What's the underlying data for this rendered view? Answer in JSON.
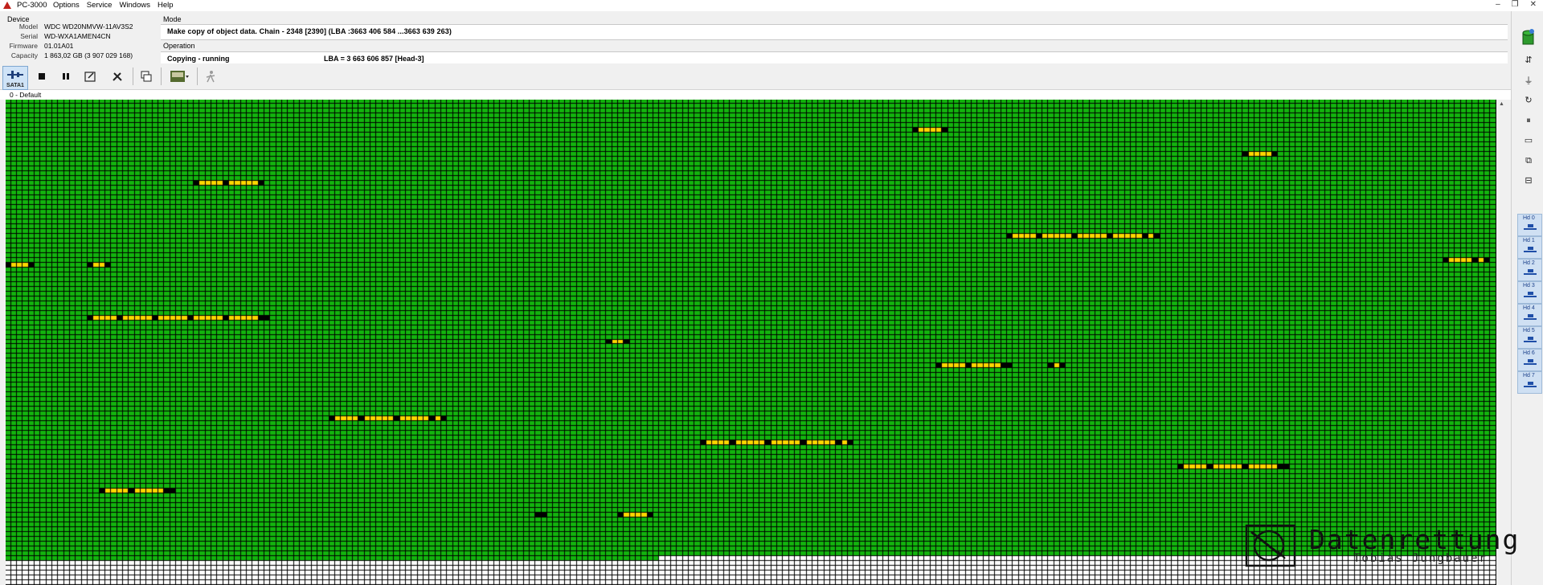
{
  "app": {
    "title": "PC-3000"
  },
  "menu": [
    "Options",
    "Service",
    "Windows",
    "Help"
  ],
  "window_controls": [
    "–",
    "❐",
    "✕"
  ],
  "device": {
    "label": "Device",
    "rows": [
      {
        "key": "Model",
        "value": "WDC WD20NMVW-11AV3S2"
      },
      {
        "key": "Serial",
        "value": "WD-WXA1AMEN4CN"
      },
      {
        "key": "Firmware",
        "value": "01.01A01"
      },
      {
        "key": "Capacity",
        "value": "1 863,02 GB (3 907 029 168)"
      }
    ]
  },
  "mode": {
    "label": "Mode",
    "text": "Make copy of object data. Chain - 2348 [2390] (LBA :3663 406 584 ...3663 639 263)"
  },
  "operation": {
    "label": "Operation",
    "status": "Copying - running",
    "lba": "LBA =   3 663 606 857  [Head-3]"
  },
  "toolbar": {
    "sata_label": "SATA1",
    "buttons": [
      "stop-icon",
      "pause-icon",
      "edit-icon",
      "tools-icon",
      "copy-windows-icon",
      "device-image-icon",
      "run-icon"
    ]
  },
  "tab": {
    "label": "0 - Default"
  },
  "right_panel": {
    "icons": [
      "drive-power-icon",
      "connection-icon",
      "plug-icon",
      "reset-icon",
      "pause-icon",
      "battery-icon",
      "copy-icon",
      "settings-icon"
    ],
    "heads": [
      "Hd 0",
      "Hd 1",
      "Hd 2",
      "Hd 3",
      "Hd 4",
      "Hd 5",
      "Hd 6",
      "Hd 7"
    ],
    "selected_heads": 8
  },
  "sector_map": {
    "colors": {
      "ok": "#13b40e",
      "read_block": "#ffd700",
      "bad": "#000000",
      "empty": "#ffffff",
      "grid": "#000000"
    },
    "columns": 253,
    "rows": 101,
    "filled_rows": 96,
    "last_row_filled_columns": 111,
    "segments": [
      {
        "row": 6,
        "start": 154,
        "length": 6
      },
      {
        "row": 11,
        "start": 210,
        "length": 6
      },
      {
        "row": 17,
        "start": 32,
        "length": 12
      },
      {
        "row": 28,
        "start": 170,
        "length": 26
      },
      {
        "row": 33,
        "start": 244,
        "length": 8
      },
      {
        "row": 34,
        "start": 0,
        "length": 5
      },
      {
        "row": 34,
        "start": 14,
        "length": 4
      },
      {
        "row": 45,
        "start": 14,
        "length": 31
      },
      {
        "row": 50,
        "start": 102,
        "length": 4
      },
      {
        "row": 55,
        "start": 158,
        "length": 13
      },
      {
        "row": 55,
        "start": 177,
        "length": 3
      },
      {
        "row": 66,
        "start": 55,
        "length": 20
      },
      {
        "row": 71,
        "start": 118,
        "length": 26
      },
      {
        "row": 76,
        "start": 199,
        "length": 19
      },
      {
        "row": 81,
        "start": 16,
        "length": 13
      },
      {
        "row": 86,
        "start": 90,
        "length": 2
      },
      {
        "row": 86,
        "start": 104,
        "length": 6
      }
    ]
  },
  "watermark": {
    "title": "Datenrettung",
    "subtitle": "Tobias Jungbauer"
  }
}
